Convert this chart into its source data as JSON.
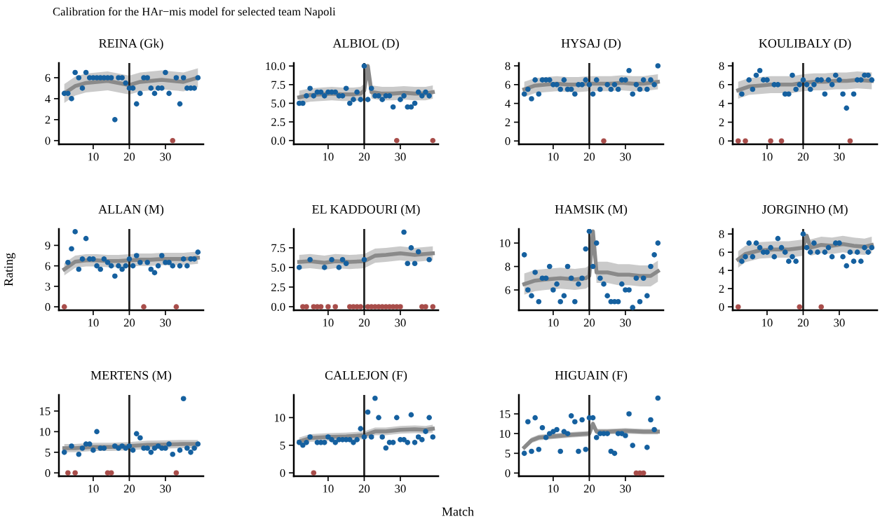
{
  "chart_data": [
    {
      "type": "scatter",
      "title": "REINA (Gk)",
      "annotations": [
        "Calibration for the HAr−mis model for selected team Napoli"
      ],
      "x": [
        2,
        3,
        4,
        5,
        6,
        7,
        8,
        9,
        10,
        11,
        12,
        13,
        14,
        15,
        16,
        17,
        18,
        19,
        20,
        21,
        22,
        23,
        24,
        25,
        26,
        27,
        28,
        29,
        30,
        31,
        32,
        33,
        34,
        35,
        36,
        37,
        38,
        39
      ],
      "xlim": [
        0.5,
        40.5
      ],
      "xticks": [
        10,
        20,
        30
      ],
      "ylim": [
        -0.35,
        7.4
      ],
      "yticks": [
        0,
        2,
        4,
        6
      ],
      "ref_lines": [
        {
          "axis": "x",
          "value": 20,
          "color": "#222222"
        }
      ],
      "series": [
        {
          "type": "line",
          "marker": "none",
          "color": "#8a8a8a",
          "x": [
            2,
            5,
            8,
            11,
            14,
            17,
            20,
            23,
            26,
            29,
            32,
            35,
            39
          ],
          "values": [
            4.5,
            5.2,
            5.5,
            5.6,
            5.7,
            5.5,
            5.3,
            5.6,
            5.7,
            5.8,
            5.7,
            5.6,
            6.0
          ],
          "lower": [
            3.6,
            4.3,
            4.6,
            4.7,
            4.8,
            4.6,
            4.4,
            4.7,
            4.8,
            4.9,
            4.8,
            4.7,
            5.1
          ],
          "upper": [
            5.4,
            6.1,
            6.4,
            6.5,
            6.6,
            6.4,
            6.2,
            6.5,
            6.6,
            6.7,
            6.6,
            6.5,
            6.9
          ]
        },
        {
          "marker": "circle",
          "color": "#15609f",
          "values": [
            4.5,
            4.5,
            4,
            6.5,
            6,
            5,
            6.5,
            6,
            6,
            6,
            6,
            6,
            6,
            6,
            2,
            6,
            6,
            5.5,
            5,
            5,
            3.5,
            4.5,
            6,
            6,
            5,
            4.5,
            5,
            5,
            6.5,
            4.5,
            null,
            6,
            3.5,
            6,
            5,
            5,
            5,
            6
          ]
        },
        {
          "marker": "circle",
          "color": "#a84d4a",
          "x": [
            32
          ],
          "values": [
            0
          ]
        }
      ]
    },
    {
      "type": "scatter",
      "title": "ALBIOL (D)",
      "x": [
        2,
        3,
        4,
        5,
        6,
        7,
        8,
        9,
        10,
        11,
        12,
        13,
        14,
        15,
        16,
        17,
        18,
        19,
        20,
        21,
        22,
        23,
        24,
        25,
        26,
        27,
        28,
        29,
        30,
        31,
        32,
        33,
        34,
        35,
        36,
        37,
        38
      ],
      "xlim": [
        0.5,
        40.5
      ],
      "xticks": [
        10,
        20,
        30
      ],
      "ylim": [
        -0.5,
        10.4
      ],
      "yticks": [
        {
          "value": 0,
          "label": "0.0"
        },
        {
          "value": 2.5,
          "label": "2.5"
        },
        {
          "value": 5,
          "label": "5.0"
        },
        {
          "value": 7.5,
          "label": "7.5"
        },
        {
          "value": 10,
          "label": "10.0"
        }
      ],
      "ref_lines": [
        {
          "axis": "x",
          "value": 20,
          "color": "#222222"
        }
      ],
      "series": [
        {
          "type": "line",
          "marker": "none",
          "color": "#8a8a8a",
          "x": [
            2,
            5,
            8,
            11,
            14,
            17,
            19,
            20,
            21,
            22,
            25,
            28,
            31,
            34,
            37,
            39
          ],
          "values": [
            5.8,
            6.1,
            6.2,
            6.3,
            6.2,
            6.2,
            6.3,
            6.7,
            10,
            6.5,
            6.3,
            6.3,
            6.4,
            6.3,
            6.3,
            6.5
          ],
          "lower": [
            4.9,
            5.2,
            5.3,
            5.4,
            5.3,
            5.3,
            5.4,
            5.8,
            9.6,
            5.6,
            5.4,
            5.4,
            5.5,
            5.4,
            5.4,
            5.6
          ],
          "upper": [
            6.7,
            7.0,
            7.1,
            7.2,
            7.1,
            7.1,
            7.2,
            7.6,
            10.4,
            7.4,
            7.2,
            7.2,
            7.3,
            7.2,
            7.2,
            7.4
          ]
        },
        {
          "marker": "circle",
          "color": "#15609f",
          "values": [
            5,
            5,
            6,
            7,
            6,
            6.5,
            6.5,
            6,
            6.5,
            6.5,
            6.5,
            6,
            6,
            7,
            5,
            5.5,
            6.5,
            5.5,
            10,
            5.5,
            7,
            6,
            6,
            5.5,
            6,
            6,
            4.5,
            null,
            5.5,
            6,
            4.5,
            4.5,
            5,
            6.5,
            6,
            6.5,
            6
          ]
        },
        {
          "marker": "circle",
          "color": "#a84d4a",
          "x": [
            29,
            39
          ],
          "values": [
            0,
            0
          ]
        }
      ]
    },
    {
      "type": "scatter",
      "title": "HYSAJ (D)",
      "x": [
        2,
        3,
        4,
        5,
        6,
        7,
        8,
        9,
        10,
        11,
        12,
        13,
        14,
        15,
        16,
        17,
        18,
        19,
        20,
        21,
        22,
        23,
        24,
        25,
        26,
        27,
        28,
        29,
        30,
        31,
        32,
        33,
        34,
        35,
        36,
        37,
        38,
        39
      ],
      "xlim": [
        0.5,
        40.5
      ],
      "xticks": [
        10,
        20,
        30
      ],
      "ylim": [
        -0.35,
        8.3
      ],
      "yticks": [
        0,
        2,
        4,
        6,
        8
      ],
      "ref_lines": [
        {
          "axis": "x",
          "value": 20,
          "color": "#222222"
        }
      ],
      "series": [
        {
          "type": "line",
          "marker": "none",
          "color": "#8a8a8a",
          "x": [
            2,
            5,
            8,
            11,
            14,
            17,
            20,
            23,
            26,
            29,
            32,
            35,
            39
          ],
          "values": [
            5.5,
            5.9,
            6.0,
            6.1,
            6.0,
            6.0,
            6.1,
            6.1,
            6.1,
            6.2,
            6.1,
            6.1,
            6.3
          ],
          "lower": [
            4.7,
            5.1,
            5.2,
            5.3,
            5.2,
            5.2,
            5.3,
            5.3,
            5.3,
            5.4,
            5.3,
            5.3,
            5.5
          ],
          "upper": [
            6.3,
            6.7,
            6.8,
            6.9,
            6.8,
            6.8,
            6.9,
            6.9,
            6.9,
            7.0,
            6.9,
            6.9,
            7.1
          ]
        },
        {
          "marker": "circle",
          "color": "#15609f",
          "values": [
            5,
            5.5,
            4.5,
            6.5,
            5,
            6.5,
            6.5,
            6.5,
            6,
            6,
            5.5,
            6.5,
            5.5,
            5.5,
            5,
            6,
            6,
            6.5,
            6,
            5,
            6.5,
            5.5,
            null,
            6,
            5.5,
            6,
            5.5,
            6.5,
            6.5,
            7.5,
            5,
            6,
            5.5,
            6.5,
            5.5,
            6.5,
            6,
            8
          ]
        },
        {
          "marker": "circle",
          "color": "#a84d4a",
          "x": [
            24
          ],
          "values": [
            0
          ]
        }
      ]
    },
    {
      "type": "scatter",
      "title": "KOULIBALY (D)",
      "x": [
        3,
        4,
        5,
        6,
        7,
        8,
        9,
        10,
        11,
        12,
        13,
        14,
        15,
        16,
        17,
        18,
        19,
        20,
        21,
        22,
        23,
        24,
        25,
        26,
        27,
        28,
        29,
        30,
        31,
        32,
        33,
        34,
        35,
        36,
        37,
        38,
        39
      ],
      "xlim": [
        0.5,
        40.5
      ],
      "xticks": [
        10,
        20,
        30
      ],
      "ylim": [
        -0.35,
        8.3
      ],
      "yticks": [
        0,
        2,
        4,
        6,
        8
      ],
      "ref_lines": [
        {
          "axis": "x",
          "value": 20,
          "color": "#222222"
        }
      ],
      "series": [
        {
          "type": "line",
          "marker": "none",
          "color": "#8a8a8a",
          "x": [
            2,
            5,
            8,
            11,
            14,
            17,
            20,
            23,
            26,
            29,
            32,
            35,
            39
          ],
          "values": [
            5.4,
            5.8,
            5.9,
            6.0,
            6.0,
            6.0,
            6.2,
            6.3,
            6.3,
            6.4,
            6.4,
            6.5,
            6.4
          ],
          "lower": [
            4.5,
            4.9,
            5.0,
            5.1,
            5.1,
            5.1,
            5.3,
            5.4,
            5.4,
            5.5,
            5.5,
            5.6,
            5.5
          ],
          "upper": [
            6.3,
            6.7,
            6.8,
            6.9,
            6.9,
            6.9,
            7.1,
            7.2,
            7.2,
            7.3,
            7.3,
            7.4,
            7.3
          ]
        },
        {
          "marker": "circle",
          "color": "#15609f",
          "values": [
            5,
            null,
            6.5,
            5.5,
            7,
            7.5,
            6.5,
            6.5,
            null,
            6,
            6,
            null,
            5,
            5,
            7,
            5.5,
            6,
            6.5,
            6,
            5.5,
            6,
            6.5,
            6.5,
            5,
            6.5,
            6,
            7,
            6.5,
            5,
            3.5,
            null,
            5,
            6.5,
            6.5,
            7,
            7,
            6.5
          ]
        },
        {
          "marker": "circle",
          "color": "#a84d4a",
          "x": [
            2,
            4,
            11,
            14,
            33
          ],
          "values": [
            0,
            0,
            0,
            0,
            0
          ]
        }
      ]
    },
    {
      "type": "scatter",
      "title": "ALLAN (M)",
      "ylabel": "Rating",
      "x": [
        3,
        4,
        5,
        6,
        7,
        8,
        9,
        10,
        11,
        12,
        13,
        14,
        15,
        16,
        17,
        18,
        19,
        20,
        21,
        22,
        23,
        24,
        25,
        26,
        27,
        28,
        29,
        30,
        31,
        32,
        33,
        34,
        35,
        36,
        37,
        38,
        39
      ],
      "xlim": [
        0.5,
        40.5
      ],
      "xticks": [
        10,
        20,
        30
      ],
      "ylim": [
        -0.5,
        11.4
      ],
      "yticks": [
        0,
        3,
        6,
        9
      ],
      "ref_lines": [
        {
          "axis": "x",
          "value": 20,
          "color": "#222222"
        }
      ],
      "series": [
        {
          "type": "line",
          "marker": "none",
          "color": "#8a8a8a",
          "x": [
            2,
            5,
            8,
            11,
            14,
            17,
            20,
            23,
            26,
            29,
            32,
            35,
            39
          ],
          "values": [
            5.5,
            6.6,
            6.8,
            6.8,
            6.7,
            6.7,
            6.8,
            6.9,
            6.9,
            7.0,
            7.0,
            7.0,
            7.2
          ],
          "lower": [
            4.6,
            5.7,
            5.9,
            5.9,
            5.8,
            5.8,
            5.9,
            6.0,
            6.0,
            6.1,
            6.1,
            6.1,
            6.3
          ],
          "upper": [
            6.4,
            7.5,
            7.7,
            7.7,
            7.6,
            7.6,
            7.7,
            7.8,
            7.8,
            7.9,
            7.9,
            7.9,
            8.1
          ]
        },
        {
          "marker": "circle",
          "color": "#15609f",
          "values": [
            6.5,
            8.5,
            11,
            5.5,
            7,
            10,
            7,
            7,
            6,
            5.5,
            7,
            6.5,
            6,
            4.5,
            6,
            5.5,
            6,
            7,
            6,
            7.5,
            6.5,
            null,
            6.5,
            5.5,
            5,
            6,
            7.5,
            6.5,
            6.5,
            6,
            null,
            6,
            7,
            6,
            7,
            7,
            8
          ]
        },
        {
          "marker": "circle",
          "color": "#a84d4a",
          "x": [
            2,
            24,
            33
          ],
          "values": [
            0,
            0,
            0
          ]
        }
      ]
    },
    {
      "type": "scatter",
      "title": "EL KADDOURI (M)",
      "x": [
        2,
        3,
        4,
        5,
        6,
        7,
        8,
        9,
        10,
        11,
        12,
        13,
        14,
        15,
        16,
        17,
        18,
        19,
        20,
        21,
        22,
        23,
        24,
        25,
        26,
        27,
        28,
        29,
        30,
        31,
        32,
        33,
        34,
        35,
        36,
        37,
        38
      ],
      "xlim": [
        0.5,
        40.5
      ],
      "xticks": [
        10,
        20,
        30
      ],
      "ylim": [
        -0.45,
        9.9
      ],
      "yticks": [
        {
          "value": 0,
          "label": "0.0"
        },
        {
          "value": 2.5,
          "label": "2.5"
        },
        {
          "value": 5,
          "label": "5.0"
        },
        {
          "value": 7.5,
          "label": "7.5"
        }
      ],
      "ref_lines": [
        {
          "axis": "x",
          "value": 20,
          "color": "#222222"
        }
      ],
      "series": [
        {
          "type": "line",
          "marker": "none",
          "color": "#8a8a8a",
          "x": [
            2,
            5,
            9,
            12,
            16,
            20,
            23,
            26,
            30,
            34,
            39
          ],
          "values": [
            5.7,
            5.8,
            5.6,
            5.8,
            5.7,
            5.8,
            6.5,
            6.6,
            6.8,
            6.6,
            6.8
          ],
          "lower": [
            4.8,
            4.9,
            4.7,
            4.9,
            4.8,
            4.9,
            5.6,
            5.7,
            5.9,
            5.7,
            5.9
          ],
          "upper": [
            6.6,
            6.7,
            6.5,
            6.7,
            6.6,
            6.7,
            7.4,
            7.5,
            7.7,
            7.5,
            7.7
          ]
        },
        {
          "marker": "circle",
          "color": "#15609f",
          "values": [
            5,
            null,
            null,
            6,
            null,
            null,
            null,
            5,
            null,
            6,
            null,
            5,
            6,
            5.5,
            null,
            null,
            null,
            null,
            6,
            null,
            null,
            null,
            null,
            null,
            null,
            null,
            null,
            null,
            null,
            9.5,
            5.5,
            7.5,
            5.5,
            7,
            null,
            null,
            6
          ]
        },
        {
          "marker": "circle",
          "color": "#a84d4a",
          "x": [
            3,
            4,
            6,
            7,
            8,
            10,
            12,
            16,
            17,
            18,
            19,
            21,
            22,
            23,
            24,
            25,
            26,
            27,
            28,
            29,
            30,
            36,
            37,
            39
          ],
          "values": [
            0,
            0,
            0,
            0,
            0,
            0,
            0,
            0,
            0,
            0,
            0,
            0,
            0,
            0,
            0,
            0,
            0,
            0,
            0,
            0,
            0,
            0,
            0,
            0
          ]
        }
      ]
    },
    {
      "type": "scatter",
      "title": "HAMSIK (M)",
      "x": [
        2,
        3,
        4,
        5,
        6,
        7,
        8,
        9,
        10,
        11,
        12,
        13,
        14,
        15,
        16,
        17,
        18,
        19,
        20,
        21,
        22,
        23,
        24,
        25,
        26,
        27,
        28,
        29,
        30,
        31,
        32,
        33,
        34,
        35,
        36,
        37,
        38,
        39
      ],
      "xlim": [
        0.5,
        40.5
      ],
      "xticks": [
        10,
        20,
        30
      ],
      "ylim": [
        4.27,
        11.2
      ],
      "yticks": [
        6,
        8,
        10
      ],
      "ref_lines": [
        {
          "axis": "x",
          "value": 20,
          "color": "#222222"
        }
      ],
      "series": [
        {
          "type": "line",
          "marker": "none",
          "color": "#8a8a8a",
          "x": [
            2,
            5,
            8,
            12,
            16,
            19,
            20,
            21,
            22,
            25,
            28,
            31,
            34,
            37,
            39
          ],
          "values": [
            6.5,
            6.8,
            6.9,
            7.0,
            6.9,
            7.0,
            7.2,
            11.0,
            7.5,
            7.5,
            7.3,
            7.3,
            7.2,
            7.2,
            7.6
          ],
          "lower": [
            5.6,
            5.9,
            6.0,
            6.1,
            6.0,
            6.1,
            6.3,
            10.7,
            6.6,
            6.6,
            6.4,
            6.4,
            6.3,
            6.3,
            6.7
          ],
          "upper": [
            7.4,
            7.7,
            7.8,
            7.9,
            7.8,
            7.9,
            8.1,
            11.1,
            8.4,
            8.4,
            8.2,
            8.2,
            8.1,
            8.1,
            8.5
          ]
        },
        {
          "marker": "circle",
          "color": "#15609f",
          "values": [
            9,
            6,
            5.5,
            7.5,
            5,
            7,
            7,
            8,
            6,
            6.5,
            5,
            5.5,
            8,
            7,
            5,
            6.5,
            7,
            9.5,
            11,
            8,
            10,
            7,
            6.5,
            5.5,
            5,
            5,
            5,
            6.5,
            6,
            6,
            4.5,
            7,
            5,
            7,
            5.5,
            8,
            9,
            10
          ]
        }
      ]
    },
    {
      "type": "scatter",
      "title": "JORGINHO (M)",
      "x": [
        3,
        4,
        5,
        6,
        7,
        8,
        9,
        10,
        11,
        12,
        13,
        14,
        15,
        16,
        17,
        18,
        19,
        20,
        21,
        22,
        23,
        24,
        25,
        26,
        27,
        28,
        29,
        30,
        31,
        32,
        33,
        34,
        35,
        36,
        37,
        38,
        39
      ],
      "xlim": [
        0.5,
        40.5
      ],
      "xticks": [
        10,
        20,
        30
      ],
      "ylim": [
        -0.37,
        8.55
      ],
      "yticks": [
        0,
        2,
        4,
        6,
        8
      ],
      "ref_lines": [
        {
          "axis": "x",
          "value": 20,
          "color": "#222222"
        }
      ],
      "series": [
        {
          "type": "line",
          "marker": "none",
          "color": "#8a8a8a",
          "x": [
            2,
            4,
            8,
            12,
            16,
            20,
            21,
            22,
            25,
            28,
            31,
            34,
            37,
            39
          ],
          "values": [
            5.2,
            5.8,
            6.2,
            6.3,
            6.3,
            6.5,
            7.8,
            6.5,
            6.8,
            6.7,
            6.9,
            6.7,
            6.6,
            6.8
          ],
          "lower": [
            4.3,
            4.9,
            5.3,
            5.4,
            5.4,
            5.6,
            7.5,
            5.6,
            5.9,
            5.8,
            6.0,
            5.8,
            5.7,
            5.9
          ],
          "upper": [
            6.1,
            6.7,
            7.1,
            7.2,
            7.2,
            7.4,
            8.1,
            7.4,
            7.7,
            7.6,
            7.8,
            7.6,
            7.5,
            7.7
          ]
        },
        {
          "marker": "circle",
          "color": "#15609f",
          "values": [
            5,
            5.5,
            7,
            5.5,
            7,
            6.5,
            6,
            6,
            6.5,
            5.5,
            7.5,
            6.5,
            6,
            5,
            5.5,
            5,
            null,
            8,
            6.5,
            6,
            7,
            6,
            null,
            6,
            6.5,
            5.5,
            7,
            7,
            5.5,
            4.5,
            6,
            5,
            6,
            5,
            6.5,
            6,
            6.5
          ]
        },
        {
          "marker": "circle",
          "color": "#a84d4a",
          "x": [
            2,
            19,
            25
          ],
          "values": [
            0,
            0,
            0
          ]
        }
      ]
    },
    {
      "type": "scatter",
      "title": "MERTENS (M)",
      "x": [
        2,
        3,
        4,
        5,
        6,
        7,
        8,
        9,
        10,
        11,
        12,
        13,
        14,
        15,
        16,
        17,
        18,
        19,
        20,
        21,
        22,
        23,
        24,
        25,
        26,
        27,
        28,
        29,
        30,
        31,
        32,
        33,
        34,
        35,
        36,
        37,
        38,
        39
      ],
      "xlim": [
        0.5,
        40.5
      ],
      "xticks": [
        10,
        20,
        30
      ],
      "ylim": [
        -0.8,
        18.9
      ],
      "yticks": [
        0,
        5,
        10,
        15
      ],
      "ref_lines": [
        {
          "axis": "x",
          "value": 20,
          "color": "#222222"
        }
      ],
      "series": [
        {
          "type": "line",
          "marker": "none",
          "color": "#8a8a8a",
          "x": [
            2,
            5,
            10,
            15,
            20,
            25,
            30,
            35,
            39
          ],
          "values": [
            6.0,
            6.0,
            6.3,
            6.3,
            6.5,
            6.8,
            6.9,
            7.0,
            7.0
          ],
          "lower": [
            5.0,
            5.0,
            5.3,
            5.3,
            5.5,
            5.8,
            5.9,
            6.0,
            6.0
          ],
          "upper": [
            7.0,
            7.0,
            7.3,
            7.3,
            7.5,
            7.8,
            7.9,
            8.0,
            8.0
          ]
        },
        {
          "marker": "circle",
          "color": "#15609f",
          "values": [
            5,
            null,
            6.5,
            null,
            4.5,
            6,
            7,
            7,
            5.5,
            10,
            6,
            6,
            null,
            null,
            6.5,
            6,
            6.5,
            6,
            6.5,
            5.5,
            9.5,
            8.5,
            6,
            6,
            5,
            6,
            6.5,
            6,
            6,
            7,
            4.5,
            null,
            5.5,
            18,
            6,
            5,
            6,
            7
          ]
        },
        {
          "marker": "circle",
          "color": "#a84d4a",
          "x": [
            3,
            5,
            14,
            15,
            33
          ],
          "values": [
            0,
            0,
            0,
            0,
            0
          ]
        }
      ]
    },
    {
      "type": "scatter",
      "title": "CALLEJON (F)",
      "xlabel": "Match",
      "x": [
        2,
        3,
        4,
        5,
        6,
        7,
        8,
        9,
        10,
        11,
        12,
        13,
        14,
        15,
        16,
        17,
        18,
        19,
        20,
        21,
        22,
        23,
        24,
        25,
        26,
        27,
        28,
        29,
        30,
        31,
        32,
        33,
        34,
        35,
        36,
        37,
        38,
        39
      ],
      "xlim": [
        0.5,
        40.5
      ],
      "xticks": [
        10,
        20,
        30
      ],
      "ylim": [
        -0.6,
        14.1
      ],
      "yticks": [
        0,
        5,
        10
      ],
      "ref_lines": [
        {
          "axis": "x",
          "value": 20,
          "color": "#222222"
        }
      ],
      "series": [
        {
          "type": "line",
          "marker": "none",
          "color": "#8a8a8a",
          "x": [
            2,
            5,
            10,
            15,
            20,
            23,
            26,
            30,
            34,
            37,
            39
          ],
          "values": [
            5.7,
            6.3,
            6.5,
            6.6,
            6.8,
            7.5,
            7.5,
            7.8,
            7.9,
            7.8,
            8.0
          ],
          "lower": [
            5.0,
            5.6,
            5.8,
            5.9,
            6.1,
            6.8,
            6.8,
            7.1,
            7.2,
            7.1,
            7.3
          ],
          "upper": [
            6.4,
            7.0,
            7.2,
            7.3,
            7.5,
            8.2,
            8.2,
            8.5,
            8.6,
            8.5,
            8.7
          ]
        },
        {
          "marker": "circle",
          "color": "#15609f",
          "values": [
            5.5,
            5,
            5.5,
            6.5,
            null,
            5.5,
            5.5,
            5.5,
            6.5,
            6,
            5.5,
            6,
            6,
            6,
            6,
            5.5,
            6,
            8,
            6.5,
            11,
            6.5,
            13.5,
            10,
            6.5,
            4.5,
            5.5,
            5.5,
            10,
            6,
            6,
            5.5,
            10.5,
            5.5,
            6.5,
            6,
            7.5,
            10,
            6.5
          ]
        },
        {
          "marker": "circle",
          "color": "#a84d4a",
          "x": [
            6
          ],
          "values": [
            0
          ]
        }
      ]
    },
    {
      "type": "scatter",
      "title": "HIGUAIN (F)",
      "x": [
        2,
        3,
        4,
        5,
        6,
        7,
        8,
        9,
        10,
        11,
        12,
        13,
        14,
        15,
        16,
        17,
        18,
        19,
        20,
        21,
        22,
        23,
        24,
        25,
        26,
        27,
        28,
        29,
        30,
        31,
        32,
        33,
        34,
        35,
        36,
        37,
        38,
        39
      ],
      "xlim": [
        0.5,
        40.5
      ],
      "xticks": [
        10,
        20,
        30
      ],
      "ylim": [
        -0.8,
        19.8
      ],
      "yticks": [
        0,
        5,
        10,
        15
      ],
      "ref_lines": [
        {
          "axis": "x",
          "value": 20,
          "color": "#222222"
        }
      ],
      "series": [
        {
          "type": "line",
          "marker": "none",
          "color": "#8a8a8a",
          "x": [
            2,
            4,
            6,
            10,
            15,
            20,
            21,
            22,
            25,
            30,
            35,
            39
          ],
          "values": [
            6.5,
            8.3,
            9.0,
            9.3,
            9.7,
            10.0,
            12.5,
            10.5,
            10.5,
            10.7,
            10.5,
            10.5
          ],
          "lower": [
            5.8,
            7.6,
            8.3,
            8.6,
            9.0,
            9.3,
            11.8,
            9.8,
            9.8,
            10.0,
            9.8,
            9.8
          ],
          "upper": [
            7.2,
            9.0,
            9.7,
            10.0,
            10.4,
            10.7,
            13.2,
            11.2,
            11.2,
            11.4,
            11.2,
            11.2
          ]
        },
        {
          "marker": "circle",
          "color": "#15609f",
          "values": [
            5,
            13,
            5.5,
            14,
            6,
            11.5,
            9,
            10,
            10.5,
            11,
            5.5,
            10.5,
            10,
            14.5,
            13,
            5.5,
            13.5,
            6,
            14,
            14,
            9,
            10,
            10,
            10,
            5.5,
            5,
            10,
            10,
            9.5,
            15,
            7,
            null,
            null,
            null,
            6.5,
            13.5,
            11,
            19
          ]
        },
        {
          "marker": "circle",
          "color": "#a84d4a",
          "x": [
            33,
            34,
            35
          ],
          "values": [
            0,
            0,
            0
          ]
        }
      ]
    }
  ]
}
